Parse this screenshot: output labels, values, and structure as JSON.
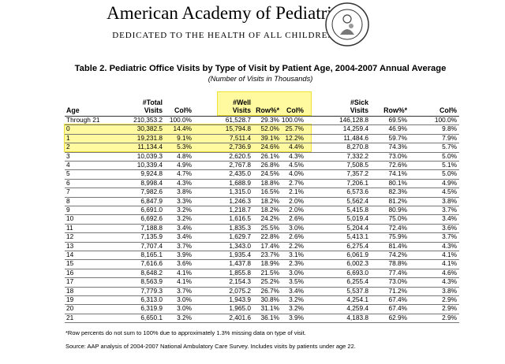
{
  "header": {
    "title": "American Academy of Pediatrics",
    "tagline": "DEDICATED TO THE HEALTH OF ALL CHILDREN™"
  },
  "table": {
    "title": "Table 2.  Pediatric Office Visits by Type of Visit by Patient Age, 2004-2007 Annual Average",
    "subtitle": "(Number of Visits in Thousands)",
    "columns": [
      [
        "Age"
      ],
      [
        "#Total",
        "Visits"
      ],
      [
        "Col%"
      ],
      [
        "#Well",
        "Visits"
      ],
      [
        "Row%*"
      ],
      [
        "Col%"
      ],
      [
        "#Sick",
        "Visits"
      ],
      [
        "Row%*"
      ],
      [
        "Col%"
      ]
    ],
    "rows": [
      [
        "Through 21",
        "210,353.2",
        "100.0%",
        "61,528.7",
        "29.3%",
        "100.0%",
        "146,128.8",
        "69.5%",
        "100.0%"
      ],
      [
        "0",
        "30,382.5",
        "14.4%",
        "15,794.8",
        "52.0%",
        "25.7%",
        "14,259.4",
        "46.9%",
        "9.8%"
      ],
      [
        "1",
        "19,231.8",
        "9.1%",
        "7,511.4",
        "39.1%",
        "12.2%",
        "11,484.6",
        "59.7%",
        "7.9%"
      ],
      [
        "2",
        "11,134.4",
        "5.3%",
        "2,736.9",
        "24.6%",
        "4.4%",
        "8,270.8",
        "74.3%",
        "5.7%"
      ],
      [
        "3",
        "10,039.3",
        "4.8%",
        "2,620.5",
        "26.1%",
        "4.3%",
        "7,332.2",
        "73.0%",
        "5.0%"
      ],
      [
        "4",
        "10,339.4",
        "4.9%",
        "2,767.8",
        "26.8%",
        "4.5%",
        "7,508.5",
        "72.6%",
        "5.1%"
      ],
      [
        "5",
        "9,924.8",
        "4.7%",
        "2,435.0",
        "24.5%",
        "4.0%",
        "7,357.2",
        "74.1%",
        "5.0%"
      ],
      [
        "6",
        "8,998.4",
        "4.3%",
        "1,688.9",
        "18.8%",
        "2.7%",
        "7,206.1",
        "80.1%",
        "4.9%"
      ],
      [
        "7",
        "7,982.6",
        "3.8%",
        "1,315.0",
        "16.5%",
        "2.1%",
        "6,573.6",
        "82.3%",
        "4.5%"
      ],
      [
        "8",
        "6,847.9",
        "3.3%",
        "1,246.3",
        "18.2%",
        "2.0%",
        "5,562.4",
        "81.2%",
        "3.8%"
      ],
      [
        "9",
        "6,691.0",
        "3.2%",
        "1,218.7",
        "18.2%",
        "2.0%",
        "5,415.8",
        "80.9%",
        "3.7%"
      ],
      [
        "10",
        "6,692.6",
        "3.2%",
        "1,616.5",
        "24.2%",
        "2.6%",
        "5,019.4",
        "75.0%",
        "3.4%"
      ],
      [
        "11",
        "7,188.8",
        "3.4%",
        "1,835.3",
        "25.5%",
        "3.0%",
        "5,204.4",
        "72.4%",
        "3.6%"
      ],
      [
        "12",
        "7,135.9",
        "3.4%",
        "1,629.7",
        "22.8%",
        "2.6%",
        "5,413.1",
        "75.9%",
        "3.7%"
      ],
      [
        "13",
        "7,707.4",
        "3.7%",
        "1,343.0",
        "17.4%",
        "2.2%",
        "6,275.4",
        "81.4%",
        "4.3%"
      ],
      [
        "14",
        "8,165.1",
        "3.9%",
        "1,935.4",
        "23.7%",
        "3.1%",
        "6,061.9",
        "74.2%",
        "4.1%"
      ],
      [
        "15",
        "7,616.6",
        "3.6%",
        "1,437.8",
        "18.9%",
        "2.3%",
        "6,002.3",
        "78.8%",
        "4.1%"
      ],
      [
        "16",
        "8,648.2",
        "4.1%",
        "1,855.8",
        "21.5%",
        "3.0%",
        "6,693.0",
        "77.4%",
        "4.6%"
      ],
      [
        "17",
        "8,563.9",
        "4.1%",
        "2,154.3",
        "25.2%",
        "3.5%",
        "6,255.4",
        "73.0%",
        "4.3%"
      ],
      [
        "18",
        "7,779.3",
        "3.7%",
        "2,075.2",
        "26.7%",
        "3.4%",
        "5,537.8",
        "71.2%",
        "3.8%"
      ],
      [
        "19",
        "6,313.0",
        "3.0%",
        "1,943.9",
        "30.8%",
        "3.2%",
        "4,254.1",
        "67.4%",
        "2.9%"
      ],
      [
        "20",
        "6,319.9",
        "3.0%",
        "1,965.0",
        "31.1%",
        "3.2%",
        "4,259.4",
        "67.4%",
        "2.9%"
      ],
      [
        "21",
        "6,650.1",
        "3.2%",
        "2,401.6",
        "36.1%",
        "3.9%",
        "4,183.8",
        "62.9%",
        "2.9%"
      ]
    ]
  },
  "notes": [
    "*Row percents do not sum to 100% due to approximately 1.3% missing data on type of visit.",
    "Source:  AAP analysis of 2004-2007 National Ambulatory Care Survey.  Includes visits by patients under age 22."
  ]
}
